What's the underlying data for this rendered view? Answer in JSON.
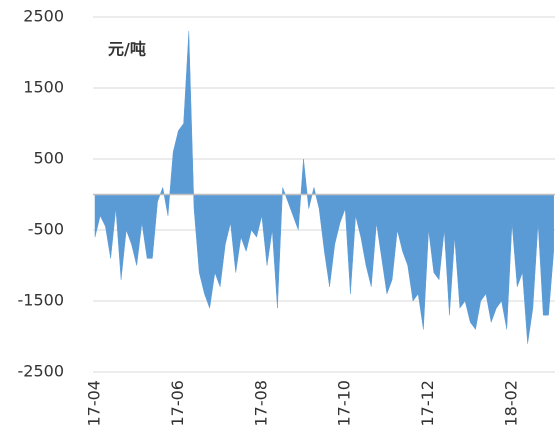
{
  "chart_data": {
    "type": "area",
    "annotation": "元/吨",
    "categories": [
      "17-04",
      null,
      null,
      null,
      null,
      null,
      null,
      null,
      null,
      null,
      null,
      null,
      null,
      null,
      null,
      null,
      "17-06",
      null,
      null,
      null,
      null,
      null,
      null,
      null,
      null,
      null,
      null,
      null,
      null,
      null,
      null,
      null,
      "17-08",
      null,
      null,
      null,
      null,
      null,
      null,
      null,
      null,
      null,
      null,
      null,
      null,
      null,
      null,
      null,
      "17-10",
      null,
      null,
      null,
      null,
      null,
      null,
      null,
      null,
      null,
      null,
      null,
      null,
      null,
      null,
      null,
      "17-12",
      null,
      null,
      null,
      null,
      null,
      null,
      null,
      null,
      null,
      null,
      null,
      null,
      null,
      null,
      null,
      "18-02",
      null,
      null,
      null,
      null,
      null,
      null,
      null,
      null
    ],
    "series": [
      {
        "color": "#5b9bd5",
        "values": [
          -600,
          -300,
          -450,
          -900,
          -200,
          -1200,
          -500,
          -700,
          -1000,
          -400,
          -900,
          -900,
          -100,
          100,
          -300,
          600,
          900,
          1000,
          2300,
          -200,
          -1100,
          -1400,
          -1600,
          -1100,
          -1300,
          -700,
          -400,
          -1100,
          -600,
          -800,
          -500,
          -600,
          -300,
          -1000,
          -500,
          -1600,
          100,
          -100,
          -300,
          -500,
          500,
          -200,
          100,
          -200,
          -800,
          -1300,
          -700,
          -400,
          -200,
          -1400,
          -300,
          -600,
          -1000,
          -1300,
          -400,
          -900,
          -1400,
          -1200,
          -500,
          -800,
          -1000,
          -1500,
          -1400,
          -1900,
          -500,
          -1100,
          -1200,
          -500,
          -1700,
          -600,
          -1600,
          -1500,
          -1800,
          -1900,
          -1500,
          -1400,
          -1800,
          -1600,
          -1500,
          -1900,
          -400,
          -1300,
          -1100,
          -2100,
          -1600,
          -400,
          -1700,
          -1700,
          -800
        ]
      }
    ],
    "ylim": [
      -2500,
      2500
    ],
    "yticks": [
      2500,
      1500,
      500,
      -500,
      -1500,
      -2500
    ],
    "grid": true,
    "tick_color": "#333333",
    "negative_tick_color": "#ff0000"
  }
}
